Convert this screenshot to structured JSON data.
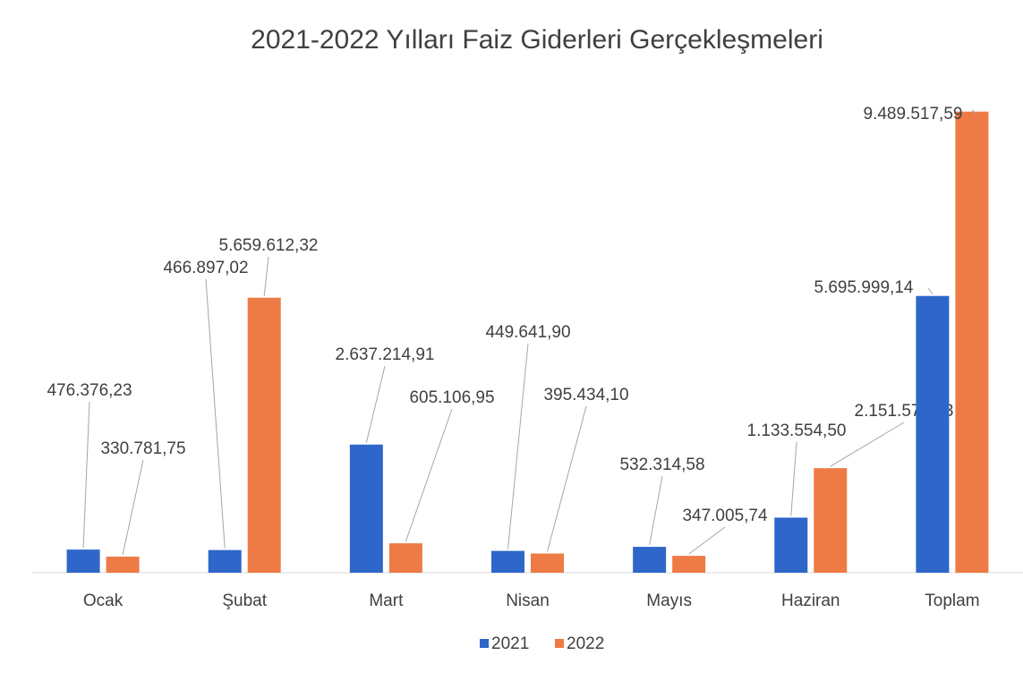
{
  "chart_data": {
    "type": "bar",
    "title": "2021-2022 Yılları Faiz Giderleri Gerçekleşmeleri",
    "categories": [
      "Ocak",
      "Şubat",
      "Mart",
      "Nisan",
      "Mayıs",
      "Haziran",
      "Toplam"
    ],
    "series": [
      {
        "name": "2021",
        "color": "#2f66c9",
        "values": [
          476376.23,
          466897.02,
          2637214.91,
          449641.9,
          532314.58,
          1133554.5,
          5695999.14
        ],
        "value_labels": [
          "476.376,23",
          "466.897,02",
          "2.637.214,91",
          "449.641,90",
          "532.314,58",
          "1.133.554,50",
          "5.695.999,14"
        ]
      },
      {
        "name": "2022",
        "color": "#ee7a45",
        "values": [
          330781.75,
          5659612.32,
          605106.95,
          395434.1,
          347005.74,
          2151576.73,
          9489517.59
        ],
        "value_labels": [
          "330.781,75",
          "5.659.612,32",
          "605.106,95",
          "395.434,10",
          "347.005,74",
          "2.151.576,73",
          "9.489.517,59"
        ]
      }
    ],
    "ylim": [
      0,
      10000000
    ],
    "legend": "bottom"
  }
}
